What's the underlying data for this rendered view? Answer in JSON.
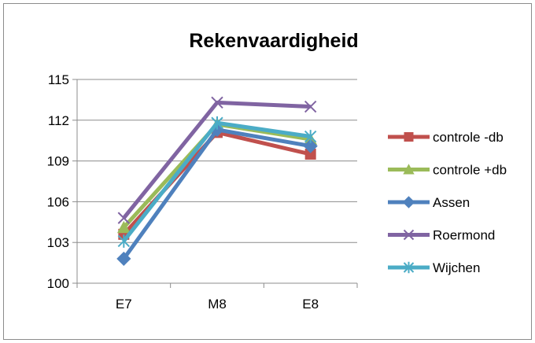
{
  "chart_data": {
    "type": "line",
    "title": "Rekenvaardigheid",
    "xlabel": "",
    "ylabel": "",
    "categories": [
      "E7",
      "M8",
      "E8"
    ],
    "ylim": [
      100,
      115
    ],
    "yticks": [
      100,
      103,
      106,
      109,
      112,
      115
    ],
    "grid": "horizontal",
    "legend_position": "right",
    "series": [
      {
        "name": "controle -db",
        "color": "#c0504d",
        "marker": "square",
        "values": [
          103.6,
          111.1,
          109.5
        ]
      },
      {
        "name": "controle +db",
        "color": "#9bbb59",
        "marker": "triangle",
        "values": [
          104.1,
          111.7,
          110.6
        ]
      },
      {
        "name": "Assen",
        "color": "#4f81bd",
        "marker": "diamond",
        "values": [
          101.8,
          111.3,
          110.1
        ]
      },
      {
        "name": "Roermond",
        "color": "#8064a2",
        "marker": "x",
        "values": [
          104.8,
          113.3,
          113.0
        ]
      },
      {
        "name": "Wijchen",
        "color": "#4bacc6",
        "marker": "asterisk",
        "values": [
          103.1,
          111.8,
          110.8
        ]
      }
    ]
  }
}
